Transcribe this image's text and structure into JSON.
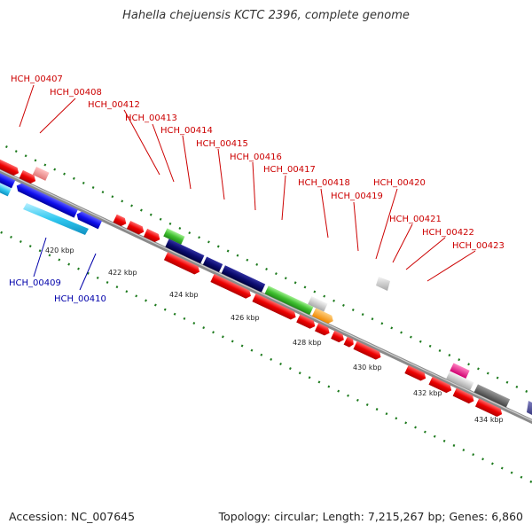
{
  "title": "Hahella chejuensis KCTC 2396, complete genome",
  "accession": "Accession: NC_007645",
  "stats": "Topology: circular; Length: 7,215,267 bp; Genes: 6,860",
  "colors": {
    "backbone": "#8a8a8a",
    "ticks": "#1d7a1d",
    "label_upper": "#cc0000",
    "label_lower": "#0000aa"
  },
  "ruler": [
    "420 kbp",
    "422 kbp",
    "424 kbp",
    "426 kbp",
    "428 kbp",
    "430 kbp",
    "432 kbp",
    "434 kbp"
  ],
  "upper_labels": [
    "HCH_00407",
    "HCH_00408",
    "HCH_00412",
    "HCH_00413",
    "HCH_00414",
    "HCH_00415",
    "HCH_00416",
    "HCH_00417",
    "HCH_00418",
    "HCH_00419",
    "HCH_00420",
    "HCH_00421",
    "HCH_00422",
    "HCH_00423"
  ],
  "lower_labels": [
    "HCH_00409",
    "HCH_00410"
  ]
}
